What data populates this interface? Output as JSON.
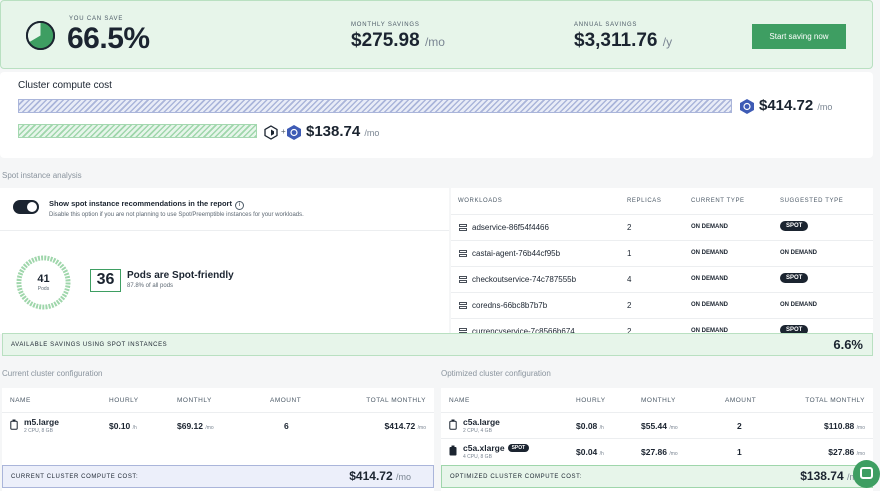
{
  "banner": {
    "save_label": "YOU CAN SAVE",
    "save_value": "66.5%",
    "save_fraction": 0.665,
    "monthly_label": "MONTHLY SAVINGS",
    "monthly_value": "$275.98",
    "monthly_unit": "/mo",
    "annual_label": "ANNUAL SAVINGS",
    "annual_value": "$3,311.76",
    "annual_unit": "/y",
    "cta_label": "Start saving now"
  },
  "compute": {
    "title": "Cluster compute cost",
    "current_cost": "$414.72",
    "current_unit": "/mo",
    "optimized_cost": "$138.74",
    "optimized_unit": "/mo",
    "plus": "+"
  },
  "spot": {
    "section_label": "Spot instance analysis",
    "toggle_title": "Show spot instance recommendations in the report",
    "toggle_sub": "Disable this option if you are not planning to use Spot/Preemptible instances for your workloads.",
    "pods_total": "41",
    "pods_label": "Pods",
    "spot_friendly_count": "36",
    "spot_friendly_title": "Pods are Spot-friendly",
    "spot_friendly_sub": "87.8% of all pods",
    "headers": {
      "workloads": "WORKLOADS",
      "replicas": "REPLICAS",
      "current": "CURRENT TYPE",
      "suggested": "SUGGESTED TYPE"
    },
    "workloads": [
      {
        "name": "adservice-86f54f4466",
        "replicas": "2",
        "current": "ON DEMAND",
        "suggested": "SPOT"
      },
      {
        "name": "castai-agent-76b44cf95b",
        "replicas": "1",
        "current": "ON DEMAND",
        "suggested": "ON DEMAND"
      },
      {
        "name": "checkoutservice-74c787555b",
        "replicas": "4",
        "current": "ON DEMAND",
        "suggested": "SPOT"
      },
      {
        "name": "coredns-66bc8b7b7b",
        "replicas": "2",
        "current": "ON DEMAND",
        "suggested": "ON DEMAND"
      },
      {
        "name": "currencyservice-7c8566b674",
        "replicas": "2",
        "current": "ON DEMAND",
        "suggested": "SPOT"
      }
    ],
    "available_label": "AVAILABLE SAVINGS USING SPOT INSTANCES",
    "available_value": "6.6%"
  },
  "current_config": {
    "section_label": "Current cluster configuration",
    "headers": {
      "name": "NAME",
      "hourly": "HOURLY",
      "monthly": "MONTHLY",
      "amount": "AMOUNT",
      "total": "TOTAL MONTHLY"
    },
    "rows": [
      {
        "name": "m5.large",
        "spec": "2 CPU, 8 GB",
        "hourly": "$0.10",
        "hourly_unit": "/h",
        "monthly": "$69.12",
        "monthly_unit": "/mo",
        "amount": "6",
        "total": "$414.72",
        "total_unit": "/mo"
      }
    ],
    "footer_label": "CURRENT CLUSTER COMPUTE COST:",
    "footer_value": "$414.72",
    "footer_unit": "/mo"
  },
  "optimized_config": {
    "section_label": "Optimized cluster configuration",
    "headers": {
      "name": "NAME",
      "hourly": "HOURLY",
      "monthly": "MONTHLY",
      "amount": "AMOUNT",
      "total": "TOTAL MONTHLY"
    },
    "rows": [
      {
        "name": "c5a.large",
        "spec": "2 CPU, 4 GB",
        "spot": "",
        "hourly": "$0.08",
        "hourly_unit": "/h",
        "monthly": "$55.44",
        "monthly_unit": "/mo",
        "amount": "2",
        "total": "$110.88",
        "total_unit": "/mo"
      },
      {
        "name": "c5a.xlarge",
        "spec": "4 CPU, 8 GB",
        "spot": "SPOT",
        "hourly": "$0.04",
        "hourly_unit": "/h",
        "monthly": "$27.86",
        "monthly_unit": "/mo",
        "amount": "1",
        "total": "$27.86",
        "total_unit": "/mo"
      }
    ],
    "footer_label": "OPTIMIZED CLUSTER COMPUTE COST:",
    "footer_value": "$138.74",
    "footer_unit": "/mo"
  },
  "colors": {
    "accent": "#3e9e62",
    "dark": "#1b2430",
    "blue_bar": "#aab5da",
    "green_bar": "#9fd6ab"
  }
}
